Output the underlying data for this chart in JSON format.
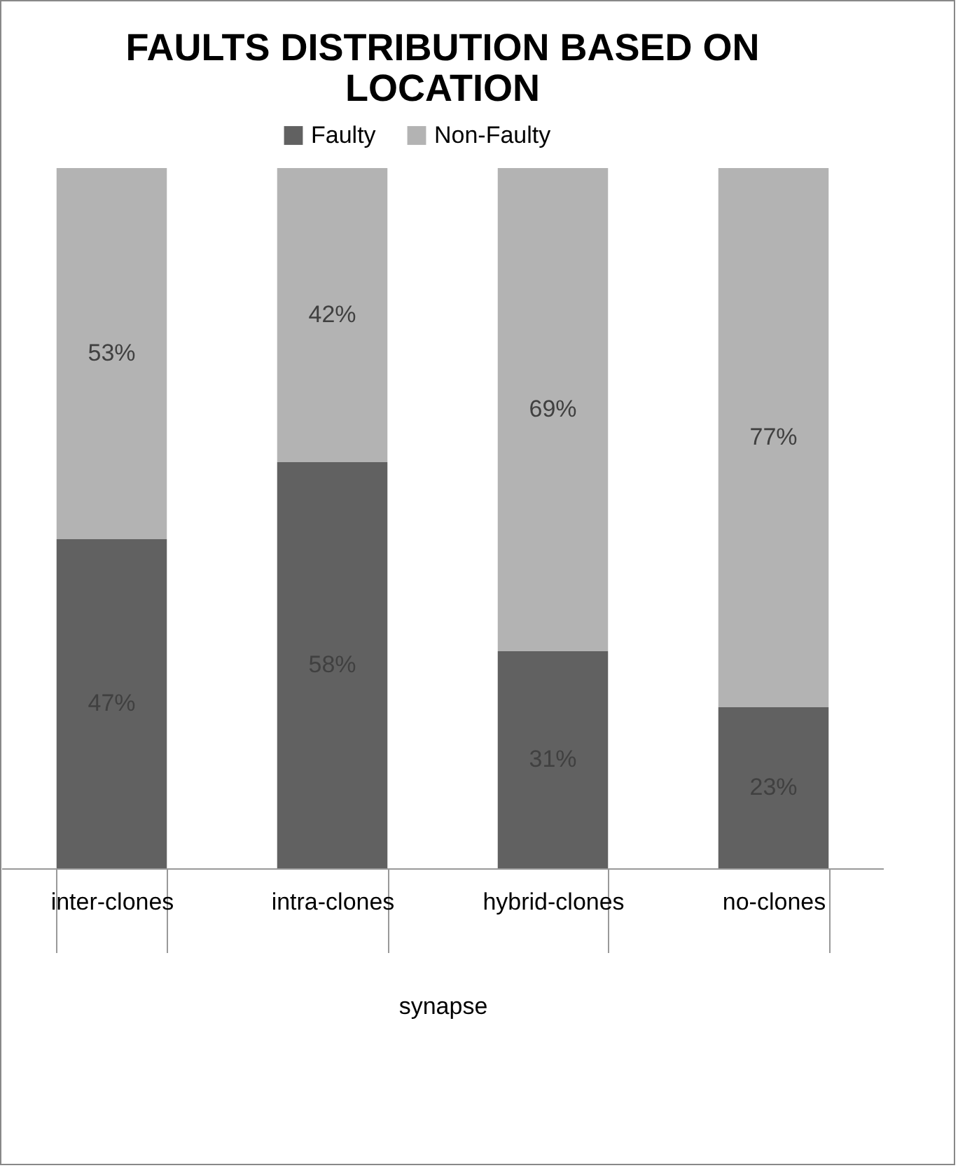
{
  "chart_data": {
    "type": "bar",
    "title": "FAULTS DISTRIBUTION BASED ON LOCATION",
    "xlabel": "synapse",
    "categories": [
      "inter-clones",
      "intra-clones",
      "hybrid-clones",
      "no-clones"
    ],
    "stacked": true,
    "legend": "top",
    "series": [
      {
        "name": "Faulty",
        "color": "#616161",
        "values": [
          47,
          58,
          31,
          23
        ],
        "value_labels": [
          "47%",
          "58%",
          "31%",
          "23%"
        ]
      },
      {
        "name": "Non-Faulty",
        "color": "#b3b3b3",
        "values": [
          53,
          42,
          69,
          77
        ],
        "value_labels": [
          "53%",
          "42%",
          "69%",
          "77%"
        ]
      }
    ]
  }
}
